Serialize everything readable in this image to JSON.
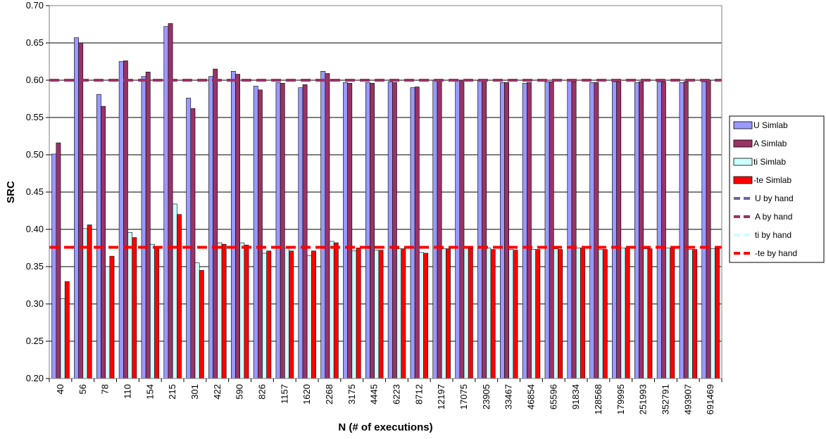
{
  "chart_data": {
    "type": "bar",
    "title": "",
    "xlabel": "N (# of executions)",
    "ylabel": "SRC",
    "ylim": [
      0.2,
      0.7
    ],
    "yticks": [
      "0.20",
      "0.25",
      "0.30",
      "0.35",
      "0.40",
      "0.45",
      "0.50",
      "0.55",
      "0.60",
      "0.65",
      "0.70"
    ],
    "grid": true,
    "legend_position": "right",
    "categories": [
      "40",
      "56",
      "78",
      "110",
      "154",
      "215",
      "301",
      "422",
      "590",
      "826",
      "1157",
      "1620",
      "2268",
      "3175",
      "4445",
      "6223",
      "8712",
      "12197",
      "17075",
      "23905",
      "33467",
      "46854",
      "65596",
      "91834",
      "128568",
      "179995",
      "251993",
      "352791",
      "493907",
      "691469"
    ],
    "series": [
      {
        "name": "U Simlab",
        "color": "#9999ff",
        "values": [
          0.501,
          0.657,
          0.581,
          0.625,
          0.605,
          0.672,
          0.576,
          0.605,
          0.612,
          0.592,
          0.597,
          0.59,
          0.612,
          0.597,
          0.597,
          0.598,
          0.59,
          0.6,
          0.6,
          0.6,
          0.597,
          0.596,
          0.598,
          0.599,
          0.597,
          0.598,
          0.597,
          0.598,
          0.597,
          0.598
        ]
      },
      {
        "name": "A Simlab",
        "color": "#993366",
        "values": [
          0.516,
          0.65,
          0.565,
          0.626,
          0.611,
          0.676,
          0.562,
          0.615,
          0.608,
          0.587,
          0.596,
          0.594,
          0.609,
          0.596,
          0.596,
          0.597,
          0.591,
          0.6,
          0.6,
          0.6,
          0.597,
          0.597,
          0.598,
          0.598,
          0.597,
          0.598,
          0.598,
          0.598,
          0.598,
          0.6
        ]
      },
      {
        "name": "ti Simlab",
        "color": "#ccffff",
        "values": [
          0.307,
          0.401,
          0.35,
          0.396,
          0.38,
          0.434,
          0.355,
          0.382,
          0.382,
          0.368,
          0.375,
          0.365,
          0.384,
          0.371,
          0.372,
          0.374,
          0.369,
          0.374,
          0.375,
          0.375,
          0.373,
          0.373,
          0.374,
          0.375,
          0.373,
          0.375,
          0.374,
          0.375,
          0.373,
          0.374
        ]
      },
      {
        "name": "-te Simlab",
        "color": "#ff0000",
        "values": [
          0.33,
          0.406,
          0.364,
          0.389,
          0.377,
          0.42,
          0.345,
          0.38,
          0.379,
          0.371,
          0.371,
          0.371,
          0.382,
          0.375,
          0.372,
          0.374,
          0.368,
          0.374,
          0.374,
          0.373,
          0.372,
          0.373,
          0.373,
          0.375,
          0.373,
          0.375,
          0.374,
          0.375,
          0.373,
          0.374
        ]
      }
    ],
    "reference_lines": [
      {
        "name": "U by hand",
        "color": "#666699",
        "value": 0.6
      },
      {
        "name": "A by hand",
        "color": "#993366",
        "value": 0.6
      },
      {
        "name": "ti by hand",
        "color": "#ccffff",
        "value": 0.376
      },
      {
        "name": "-te by hand",
        "color": "#ff0000",
        "value": 0.376
      }
    ]
  }
}
